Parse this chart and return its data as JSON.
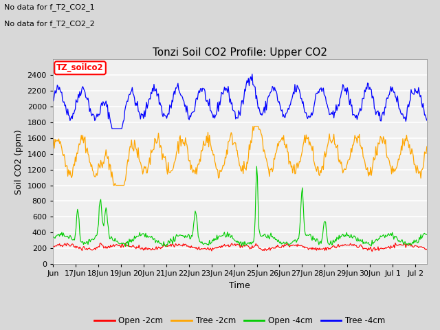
{
  "title": "Tonzi Soil CO2 Profile: Upper CO2",
  "xlabel": "Time",
  "ylabel": "Soil CO2 (ppm)",
  "no_data_text": [
    "No data for f_T2_CO2_1",
    "No data for f_T2_CO2_2"
  ],
  "legend_label_text": "TZ_soilco2",
  "legend_entries": [
    "Open -2cm",
    "Tree -2cm",
    "Open -4cm",
    "Tree -4cm"
  ],
  "legend_colors": [
    "#ff0000",
    "#ffa500",
    "#00cc00",
    "#0000ff"
  ],
  "ylim": [
    0,
    2600
  ],
  "yticks": [
    0,
    200,
    400,
    600,
    800,
    1000,
    1200,
    1400,
    1600,
    1800,
    2000,
    2200,
    2400
  ],
  "background_color": "#d8d8d8",
  "plot_bg_color": "#f0f0f0",
  "title_fontsize": 11,
  "axis_fontsize": 9,
  "tick_fontsize": 8,
  "n_points": 500,
  "xlim_max": 16.5
}
